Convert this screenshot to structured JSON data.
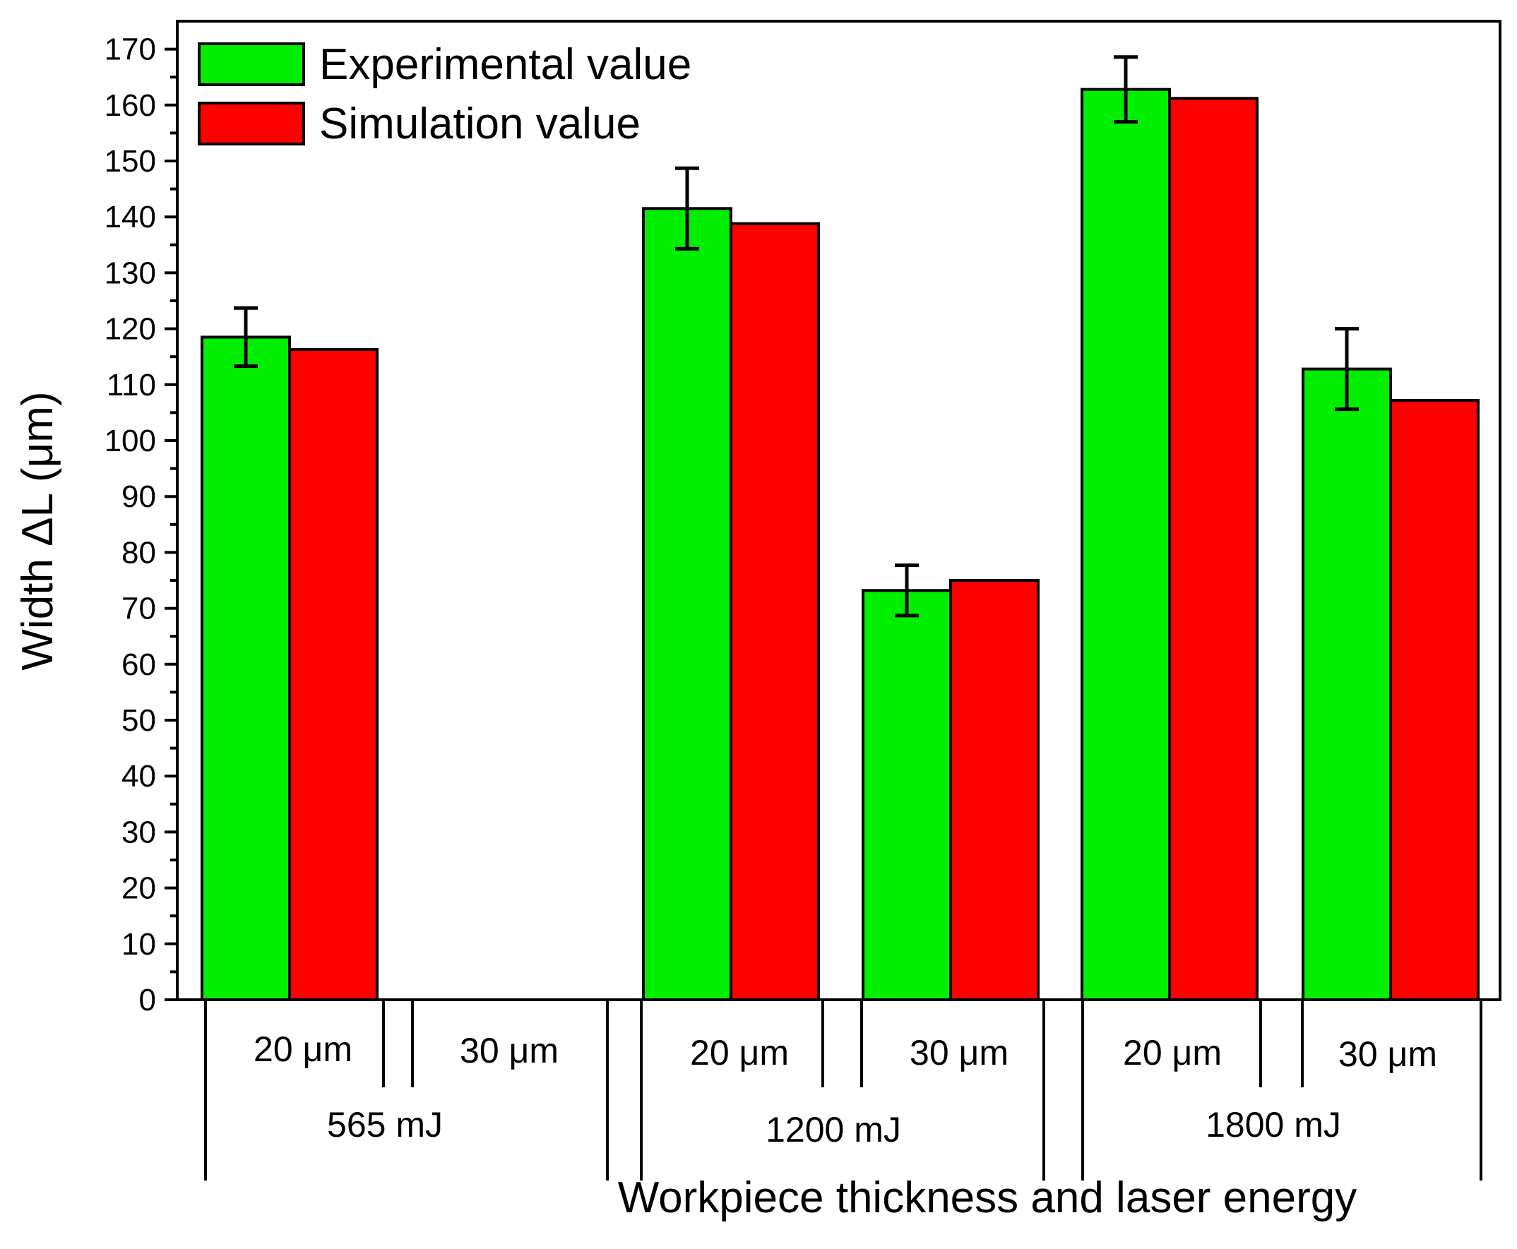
{
  "chart_data": {
    "type": "bar",
    "title": "",
    "xlabel": "Workpiece thickness and laser energy",
    "ylabel": "Width ΔL (μm)",
    "ylim": [
      0,
      175
    ],
    "yticks": [
      0,
      10,
      20,
      30,
      40,
      50,
      60,
      70,
      80,
      90,
      100,
      110,
      120,
      130,
      140,
      150,
      160,
      170
    ],
    "grid": false,
    "legend_position": "top-left",
    "groups": [
      {
        "label": "565 mJ",
        "subcategories": [
          "20 μm",
          "30 μm"
        ]
      },
      {
        "label": "1200 mJ",
        "subcategories": [
          "20 μm",
          "30 μm"
        ]
      },
      {
        "label": "1800 mJ",
        "subcategories": [
          "20 μm",
          "30 μm"
        ]
      }
    ],
    "categories": [
      "20 μm",
      "30 μm",
      "20 μm",
      "30 μm",
      "20 μm",
      "30 μm"
    ],
    "series": [
      {
        "name": "Experimental value",
        "color": "#00ee00",
        "values": [
          118.5,
          null,
          141.5,
          73.2,
          162.8,
          112.8
        ],
        "errors": [
          5.2,
          null,
          7.2,
          4.5,
          5.8,
          7.2
        ]
      },
      {
        "name": "Simulation value",
        "color": "#ff0000",
        "values": [
          116.3,
          null,
          138.8,
          75.0,
          161.2,
          107.2
        ],
        "errors": null
      }
    ]
  }
}
